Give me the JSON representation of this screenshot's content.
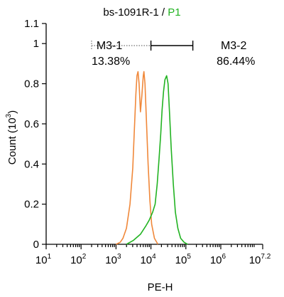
{
  "chart_data": {
    "type": "line",
    "title_prefix": "bs-1091R-1 / ",
    "title_highlight": "P1",
    "title_highlight_color": "#22b322",
    "xlabel": "PE-H",
    "ylabel": "Count",
    "ylabel_unit": "(10",
    "ylabel_unit_exp": "3",
    "ylabel_unit_close": ")",
    "x_scale": "log",
    "xlim_log": [
      1,
      7.2
    ],
    "ylim": [
      0,
      1.1
    ],
    "x_ticks": [
      {
        "base": "10",
        "exp": "1",
        "log": 1
      },
      {
        "base": "10",
        "exp": "2",
        "log": 2
      },
      {
        "base": "10",
        "exp": "3",
        "log": 3
      },
      {
        "base": "10",
        "exp": "4",
        "log": 4
      },
      {
        "base": "10",
        "exp": "5",
        "log": 5
      },
      {
        "base": "10",
        "exp": "6",
        "log": 6
      },
      {
        "base": "10",
        "exp": "7.2",
        "log": 7.2
      }
    ],
    "y_ticks": [
      {
        "label": "0",
        "value": 0
      },
      {
        "label": "0.2",
        "value": 0.2
      },
      {
        "label": "0.4",
        "value": 0.4
      },
      {
        "label": "0.6",
        "value": 0.6
      },
      {
        "label": "0.8",
        "value": 0.8
      },
      {
        "label": "1",
        "value": 1.0
      },
      {
        "label": "1.1",
        "value": 1.1
      }
    ],
    "series": [
      {
        "color": "#f0883a",
        "points": [
          [
            3.0,
            0.0
          ],
          [
            3.12,
            0.01
          ],
          [
            3.2,
            0.03
          ],
          [
            3.3,
            0.08
          ],
          [
            3.4,
            0.2
          ],
          [
            3.48,
            0.38
          ],
          [
            3.52,
            0.55
          ],
          [
            3.57,
            0.75
          ],
          [
            3.6,
            0.84
          ],
          [
            3.63,
            0.86
          ],
          [
            3.66,
            0.8
          ],
          [
            3.7,
            0.66
          ],
          [
            3.74,
            0.74
          ],
          [
            3.78,
            0.84
          ],
          [
            3.8,
            0.86
          ],
          [
            3.83,
            0.8
          ],
          [
            3.87,
            0.62
          ],
          [
            3.92,
            0.4
          ],
          [
            3.97,
            0.22
          ],
          [
            4.02,
            0.1
          ],
          [
            4.1,
            0.03
          ],
          [
            4.2,
            0.0
          ]
        ]
      },
      {
        "color": "#22b322",
        "points": [
          [
            3.3,
            0.0
          ],
          [
            3.5,
            0.02
          ],
          [
            3.7,
            0.05
          ],
          [
            3.85,
            0.09
          ],
          [
            3.95,
            0.12
          ],
          [
            4.05,
            0.16
          ],
          [
            4.12,
            0.2
          ],
          [
            4.18,
            0.3
          ],
          [
            4.23,
            0.42
          ],
          [
            4.28,
            0.55
          ],
          [
            4.32,
            0.67
          ],
          [
            4.36,
            0.76
          ],
          [
            4.4,
            0.82
          ],
          [
            4.45,
            0.84
          ],
          [
            4.49,
            0.8
          ],
          [
            4.53,
            0.66
          ],
          [
            4.58,
            0.48
          ],
          [
            4.64,
            0.3
          ],
          [
            4.7,
            0.16
          ],
          [
            4.77,
            0.08
          ],
          [
            4.85,
            0.03
          ],
          [
            4.95,
            0.01
          ],
          [
            5.05,
            0.0
          ]
        ]
      }
    ],
    "gates": [
      {
        "name": "M3-1",
        "percent": "13.38%",
        "x_start_log": 2.3,
        "x_end_log": 4.0,
        "style": "dotted",
        "label_log": 2.44,
        "pct_log": 2.3
      },
      {
        "name": "M3-2",
        "percent": "86.44%",
        "x_start_log": 4.0,
        "x_end_log": 5.2,
        "style": "solid",
        "label_log": 6.0,
        "pct_log": 5.88
      }
    ],
    "gate_y": 0.99
  }
}
